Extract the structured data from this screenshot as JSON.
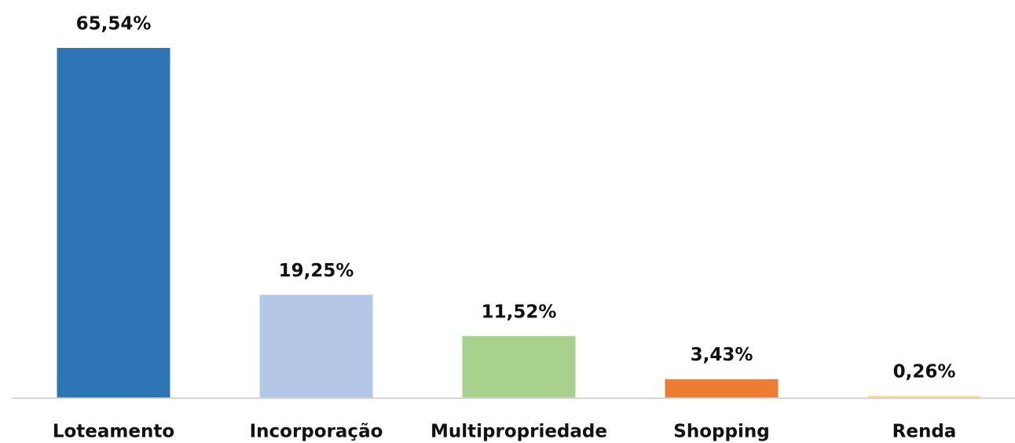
{
  "chart_data": {
    "type": "bar",
    "categories": [
      "Loteamento",
      "Incorporação",
      "Multipropriedade",
      "Shopping",
      "Renda"
    ],
    "values": [
      65.54,
      19.25,
      11.52,
      3.43,
      0.26
    ],
    "value_labels": [
      "65,54%",
      "19,25%",
      "11,52%",
      "3,43%",
      "0,26%"
    ],
    "colors": [
      "#2e75b6",
      "#b4c7e7",
      "#a9d18e",
      "#ed7d31",
      "#ffd966"
    ]
  }
}
